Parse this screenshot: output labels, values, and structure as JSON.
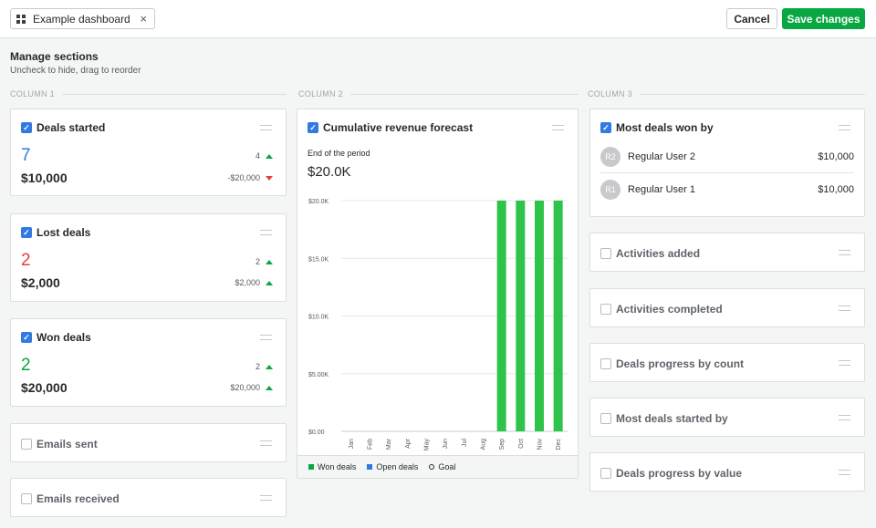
{
  "topbar": {
    "tab_label": "Example dashboard",
    "tab_close": "×",
    "cancel_label": "Cancel",
    "save_label": "Save changes"
  },
  "manage": {
    "title": "Manage sections",
    "subtitle": "Uncheck to hide, drag to reorder"
  },
  "columns": [
    "COLUMN 1",
    "COLUMN 2",
    "COLUMN 3"
  ],
  "column1": {
    "deals_started": {
      "title": "Deals started",
      "checked": true,
      "count": "7",
      "count_delta": "4",
      "amount": "$10,000",
      "amount_delta": "-$20,000",
      "count_color": "#317ae2"
    },
    "lost_deals": {
      "title": "Lost deals",
      "checked": true,
      "count": "2",
      "count_delta": "2",
      "amount": "$2,000",
      "amount_delta": "$2,000",
      "count_color": "#e33f3f"
    },
    "won_deals": {
      "title": "Won deals",
      "checked": true,
      "count": "2",
      "count_delta": "2",
      "amount": "$20,000",
      "amount_delta": "$20,000",
      "count_color": "#08a742"
    },
    "emails_sent": {
      "title": "Emails sent",
      "checked": false
    },
    "emails_received": {
      "title": "Emails received",
      "checked": false
    }
  },
  "column2": {
    "forecast": {
      "title": "Cumulative revenue forecast",
      "checked": true,
      "period_label": "End of the period",
      "period_value": "$20.0K"
    }
  },
  "column3": {
    "most_deals_won": {
      "title": "Most deals won by",
      "checked": true,
      "users": [
        {
          "initials": "R2",
          "name": "Regular User 2",
          "value": "$10,000"
        },
        {
          "initials": "R1",
          "name": "Regular User 1",
          "value": "$10,000"
        }
      ]
    },
    "activities_added": {
      "title": "Activities added",
      "checked": false
    },
    "activities_completed": {
      "title": "Activities completed",
      "checked": false
    },
    "deals_progress_count": {
      "title": "Deals progress by count",
      "checked": false
    },
    "most_deals_started": {
      "title": "Most deals started by",
      "checked": false
    },
    "deals_progress_value": {
      "title": "Deals progress by value",
      "checked": false
    }
  },
  "colors": {
    "accent_blue": "#317ae2",
    "won_green": "#08a742",
    "bar_green": "#2ec44a",
    "lost_red": "#e33f3f"
  },
  "chart_data": {
    "type": "bar",
    "categories": [
      "Jan",
      "Feb",
      "Mar",
      "Apr",
      "May",
      "Jun",
      "Jul",
      "Aug",
      "Sep",
      "Oct",
      "Nov",
      "Dec"
    ],
    "series": [
      {
        "name": "Won deals",
        "values": [
          0,
          0,
          0,
          0,
          0,
          0,
          0,
          0,
          20000,
          20000,
          20000,
          20000
        ]
      }
    ],
    "y_ticks": [
      "$0.00",
      "$5.00K",
      "$10.0K",
      "$15.0K",
      "$20.0K"
    ],
    "ylim": [
      0,
      20000
    ],
    "grid": true,
    "legend": [
      "Won deals",
      "Open deals",
      "Goal"
    ],
    "legend_placement": "bottom"
  }
}
